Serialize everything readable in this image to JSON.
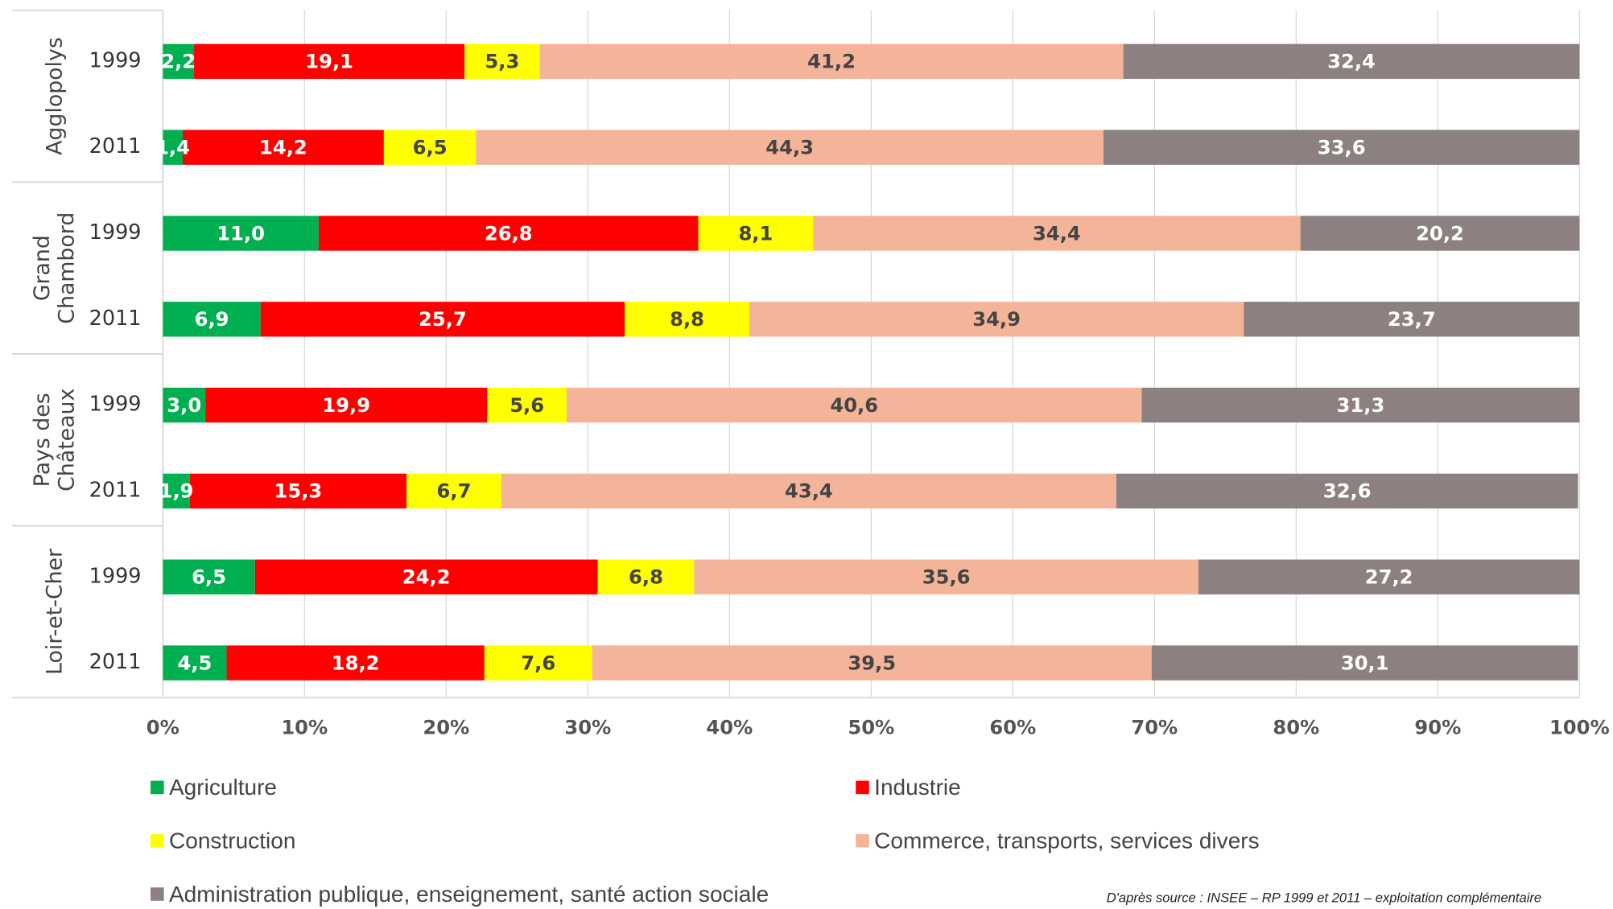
{
  "chart_data": {
    "type": "stacked_hbar",
    "categories": [
      "1999",
      "2011",
      "1999",
      "2011",
      "1999",
      "2011",
      "1999",
      "2011"
    ],
    "groups": [
      [
        "Agglopolys"
      ],
      [
        "Grand",
        "Chambord"
      ],
      [
        "Pays des",
        "Châteaux"
      ],
      [
        "Loir-et-Cher"
      ]
    ],
    "series": [
      {
        "name": "Agriculture",
        "color": "#00b050",
        "values": [
          2.2,
          1.4,
          11.0,
          6.9,
          3.0,
          1.9,
          6.5,
          4.5
        ],
        "value_labels": [
          "2,2",
          "1,4",
          "11,0",
          "6,9",
          "3,0",
          "1,9",
          "6,5",
          "4,5"
        ]
      },
      {
        "name": "Industrie",
        "color": "#ff0000",
        "values": [
          19.1,
          14.2,
          26.8,
          25.7,
          19.9,
          15.3,
          24.2,
          18.2
        ],
        "value_labels": [
          "19,1",
          "14,2",
          "26,8",
          "25,7",
          "19,9",
          "15,3",
          "24,2",
          "18,2"
        ]
      },
      {
        "name": "Construction",
        "color": "#ffff00",
        "values": [
          5.3,
          6.5,
          8.1,
          8.8,
          5.6,
          6.7,
          6.8,
          7.6
        ],
        "value_labels": [
          "5,3",
          "6,5",
          "8,1",
          "8,8",
          "5,6",
          "6,7",
          "6,8",
          "7,6"
        ]
      },
      {
        "name": "Commerce, transports, services divers",
        "color": "#f4b49a",
        "values": [
          41.2,
          44.3,
          34.4,
          34.9,
          40.6,
          43.4,
          35.6,
          39.5
        ],
        "value_labels": [
          "41,2",
          "44,3",
          "34,4",
          "34,9",
          "40,6",
          "43,4",
          "35,6",
          "39,5"
        ]
      },
      {
        "name": "Administration publique, enseignement, santé action sociale",
        "color": "#8c8080",
        "values": [
          32.4,
          33.6,
          20.2,
          23.7,
          31.3,
          32.6,
          27.2,
          30.1
        ],
        "value_labels": [
          "32,4",
          "33,6",
          "20,2",
          "23,7",
          "31,3",
          "32,6",
          "27,2",
          "30,1"
        ]
      }
    ],
    "xlim": [
      0,
      100
    ],
    "xticks": [
      {
        "value": 0,
        "label": "0%"
      },
      {
        "value": 10,
        "label": "10%"
      },
      {
        "value": 20,
        "label": "20%"
      },
      {
        "value": 30,
        "label": "30%"
      },
      {
        "value": 40,
        "label": "40%"
      },
      {
        "value": 50,
        "label": "50%"
      },
      {
        "value": 60,
        "label": "60%"
      },
      {
        "value": 70,
        "label": "70%"
      },
      {
        "value": 80,
        "label": "80%"
      },
      {
        "value": 90,
        "label": "90%"
      },
      {
        "value": 100,
        "label": "100%"
      }
    ],
    "grid": true,
    "source": "D'après source : INSEE – RP 1999 et 2011 – exploitation complémentaire"
  }
}
